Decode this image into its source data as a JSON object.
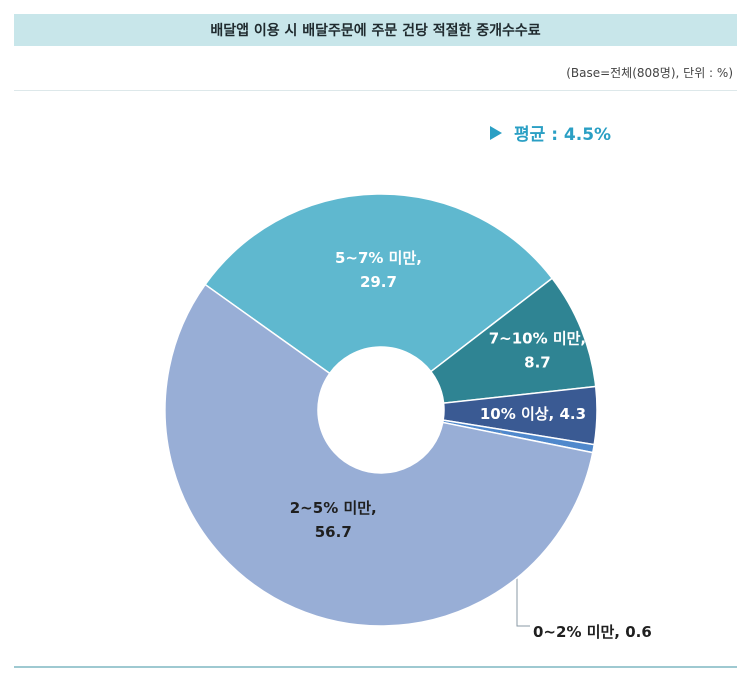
{
  "header": {
    "title": "배달앱 이용 시 배달주문에 주문 건당 적절한 중개수수료",
    "base_note": "(Base=전체(808명), 단위 : %)"
  },
  "average": {
    "label": "평균 : 4.5%"
  },
  "chart_data": {
    "type": "pie",
    "donut": true,
    "title": "배달앱 이용 시 배달주문에 주문 건당 적절한 중개수수료",
    "slices": [
      {
        "name": "5~7% 미만",
        "value": 29.7,
        "color": "#5fb8cf",
        "label_lines": [
          "5~7% 미만,",
          "29.7"
        ]
      },
      {
        "name": "7~10% 미만",
        "value": 8.7,
        "color": "#2f8493",
        "label_lines": [
          "7~10% 미만,",
          "8.7"
        ]
      },
      {
        "name": "10% 이상",
        "value": 4.3,
        "color": "#3a5a93",
        "label_lines": [
          "10% 이상, 4.3"
        ]
      },
      {
        "name": "0~2% 미만",
        "value": 0.6,
        "color": "#4f88cc",
        "label_lines": [
          "0~2% 미만, 0.6"
        ]
      },
      {
        "name": "2~5% 미만",
        "value": 56.7,
        "color": "#98aed6",
        "label_lines": [
          "2~5% 미만,",
          "56.7"
        ]
      }
    ]
  }
}
